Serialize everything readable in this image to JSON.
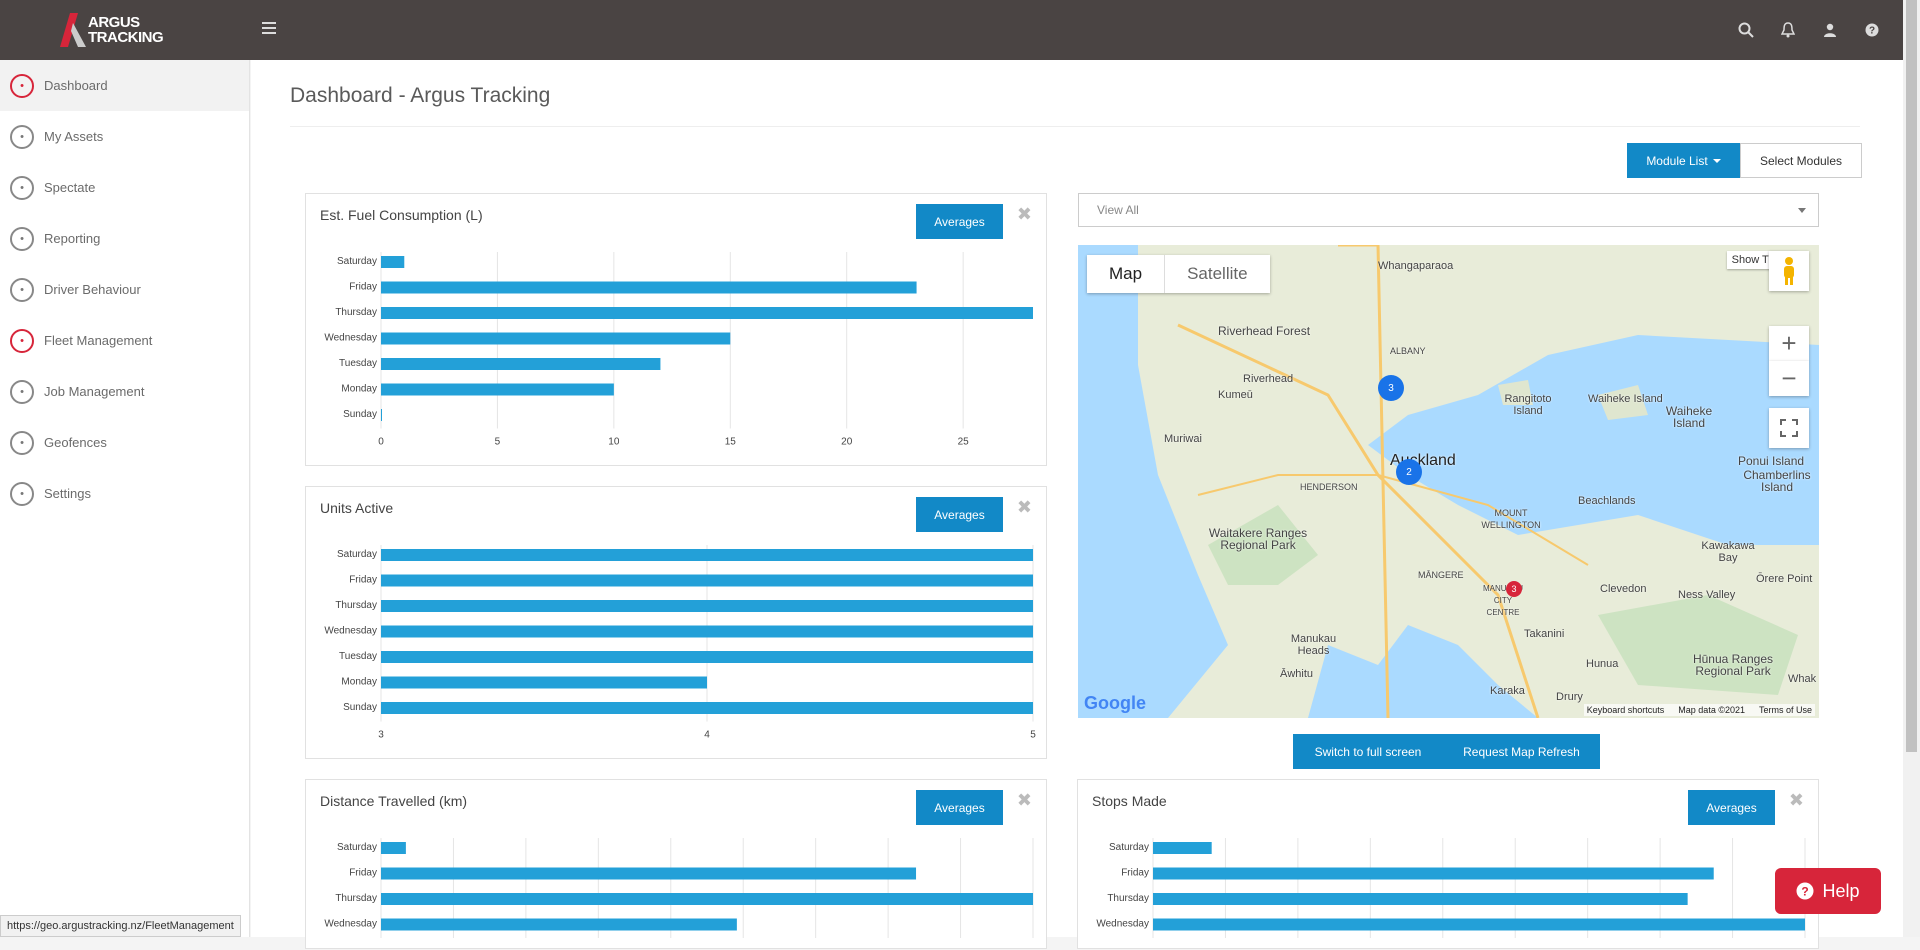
{
  "brand": {
    "line1": "ARGUS",
    "line2": "TRACKING"
  },
  "topbar": {
    "icons": [
      "search-icon",
      "bell-icon",
      "user-icon",
      "help-circle-icon"
    ]
  },
  "sidebar": {
    "items": [
      {
        "label": "Dashboard",
        "icon": "dashboard-gauge-icon",
        "active": true
      },
      {
        "label": "My Assets",
        "icon": "assets-network-icon"
      },
      {
        "label": "Spectate",
        "icon": "map-pin-icon"
      },
      {
        "label": "Reporting",
        "icon": "report-icon"
      },
      {
        "label": "Driver Behaviour",
        "icon": "driver-pin-icon"
      },
      {
        "label": "Fleet Management",
        "icon": "car-icon"
      },
      {
        "label": "Job Management",
        "icon": "briefcase-icon"
      },
      {
        "label": "Geofences",
        "icon": "geofence-icon"
      },
      {
        "label": "Settings",
        "icon": "gear-icon"
      }
    ]
  },
  "page": {
    "title": "Dashboard - Argus Tracking"
  },
  "toolbar": {
    "module_list": "Module List",
    "select_modules": "Select Modules"
  },
  "view_select": {
    "value": "View All"
  },
  "map": {
    "tabs": [
      "Map",
      "Satellite"
    ],
    "show_traffic": "Show Traffic",
    "switch_full": "Switch to full screen",
    "refresh": "Request Map Refresh",
    "footer": [
      "Keyboard shortcuts",
      "Map data ©2021",
      "Terms of Use"
    ],
    "google": "Google",
    "clusters": [
      "3",
      "2",
      "3"
    ],
    "labels": [
      "Whangaparaoa",
      "Riverhead Forest",
      "Riverhead",
      "Kumeū",
      "ALBANY",
      "Rangitoto Island",
      "Waiheke Island",
      "Waiheke Island",
      "Muriwai",
      "Auckland",
      "HENDERSON",
      "MOUNT WELLINGTON",
      "Beachlands",
      "Ponui Island",
      "Chamberlins Island",
      "Waitakere Ranges Regional Park",
      "Kawakawa Bay",
      "Ōrere Point",
      "MĀNGERE",
      "MANUKAU CITY CENTRE",
      "Clevedon",
      "Ness Valley",
      "Manukau Heads",
      "Takanini",
      "Āwhitu",
      "Hunua",
      "Hūnua Ranges Regional Park",
      "Karaka",
      "Drury",
      "Whak"
    ]
  },
  "panels": {
    "fuel": {
      "title": "Est. Fuel Consumption (L)",
      "button": "Averages"
    },
    "units": {
      "title": "Units Active",
      "button": "Averages"
    },
    "distance": {
      "title": "Distance Travelled (km)",
      "button": "Averages"
    },
    "stops": {
      "title": "Stops Made",
      "button": "Averages"
    }
  },
  "help": {
    "label": "Help"
  },
  "status_url": "https://geo.argustracking.nz/FleetManagement",
  "colors": {
    "topbar": "#4a4443",
    "accent": "#1289c7",
    "bar": "#23a0d8",
    "help": "#d7253a"
  },
  "chart_data": [
    {
      "type": "bar",
      "orientation": "horizontal",
      "title": "Est. Fuel Consumption (L)",
      "categories": [
        "Saturday",
        "Friday",
        "Thursday",
        "Wednesday",
        "Tuesday",
        "Monday",
        "Sunday"
      ],
      "values": [
        1,
        23,
        28,
        15,
        12,
        10,
        0
      ],
      "xticks": [
        "0",
        "5",
        "10",
        "15",
        "20",
        "25"
      ],
      "xlim": [
        0,
        28
      ]
    },
    {
      "type": "bar",
      "orientation": "horizontal",
      "title": "Units Active",
      "categories": [
        "Saturday",
        "Friday",
        "Thursday",
        "Wednesday",
        "Tuesday",
        "Monday",
        "Sunday"
      ],
      "values": [
        5,
        5,
        5,
        5,
        5,
        4,
        5
      ],
      "xticks": [
        "3",
        "4",
        "5"
      ],
      "xlim": [
        3,
        5
      ]
    },
    {
      "type": "bar",
      "orientation": "horizontal",
      "title": "Distance Travelled (km)",
      "categories": [
        "Saturday",
        "Friday",
        "Thursday",
        "Wednesday"
      ],
      "values": [
        10,
        215,
        262,
        143
      ],
      "xlim": [
        0,
        262
      ]
    },
    {
      "type": "bar",
      "orientation": "horizontal",
      "title": "Stops Made",
      "categories": [
        "Saturday",
        "Friday",
        "Thursday",
        "Wednesday"
      ],
      "values": [
        9,
        86,
        82,
        100
      ],
      "xlim": [
        0,
        100
      ]
    }
  ]
}
